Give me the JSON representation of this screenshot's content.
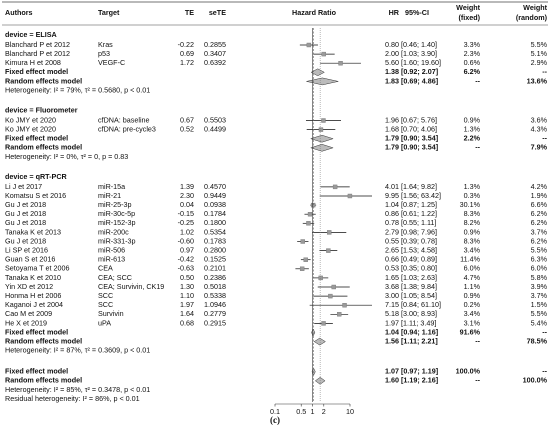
{
  "chart_data": {
    "type": "forest",
    "header": {
      "authors": "Authors",
      "target": "Target",
      "te": "TE",
      "sete": "seTE",
      "plot": "Hazard Ratio",
      "hr": "HR",
      "ci": "95%-CI",
      "weight_fixed": [
        "Weight",
        "(fixed)"
      ],
      "weight_random": [
        "Weight",
        "(random)"
      ]
    },
    "log_x": true,
    "xlim": [
      0.1,
      10
    ],
    "xticks": [
      0.1,
      0.5,
      1,
      2,
      10
    ],
    "square_color": "#9a9a9a",
    "diamond_color": "#bbbbbb",
    "groups": [
      {
        "label": "device = ELISA",
        "studies": [
          {
            "author": "Blanchard P et 2012",
            "target": "Kras",
            "te": "-0.22",
            "sete": "0.2855",
            "hr": 0.8,
            "lo": 0.46,
            "hi": 1.4,
            "hr_ci": "0.80 [0.46; 1.40]",
            "wf": "3.3%",
            "wr": "5.5%"
          },
          {
            "author": "Blanchard P et 2012",
            "target": "p53",
            "te": "0.69",
            "sete": "0.3407",
            "hr": 2.0,
            "lo": 1.03,
            "hi": 3.9,
            "hr_ci": "2.00 [1.03; 3.90]",
            "wf": "2.3%",
            "wr": "5.1%"
          },
          {
            "author": "Kimura H et 2008",
            "target": "VEGF-C",
            "te": "1.72",
            "sete": "0.6392",
            "hr": 5.6,
            "lo": 1.6,
            "hi": 19.6,
            "hr_ci": "5.60 [1.60; 19.60]",
            "wf": "0.6%",
            "wr": "2.9%"
          }
        ],
        "fixed": {
          "label": "Fixed effect model",
          "hr": 1.38,
          "lo": 0.92,
          "hi": 2.07,
          "hr_ci": "1.38 [0.92; 2.07]",
          "wf": "6.2%",
          "wr": "--"
        },
        "random": {
          "label": "Random effects model",
          "hr": 1.83,
          "lo": 0.69,
          "hi": 4.86,
          "hr_ci": "1.83 [0.69; 4.86]",
          "wf": "--",
          "wr": "13.6%"
        },
        "heterogeneity": "Heterogeneity: I² = 79%, τ² = 0.5680, p < 0.01"
      },
      {
        "label": "device = Fluorometer",
        "studies": [
          {
            "author": "Ko JMY et 2020",
            "target": "cfDNA: baseline",
            "te": "0.67",
            "sete": "0.5503",
            "hr": 1.96,
            "lo": 0.67,
            "hi": 5.76,
            "hr_ci": "1.96 [0.67; 5.76]",
            "wf": "0.9%",
            "wr": "3.6%"
          },
          {
            "author": "Ko JMY et 2020",
            "target": "cfDNA: pre-cycle3",
            "te": "0.52",
            "sete": "0.4499",
            "hr": 1.68,
            "lo": 0.7,
            "hi": 4.06,
            "hr_ci": "1.68 [0.70; 4.06]",
            "wf": "1.3%",
            "wr": "4.3%"
          }
        ],
        "fixed": {
          "label": "Fixed effect model",
          "hr": 1.79,
          "lo": 0.9,
          "hi": 3.54,
          "hr_ci": "1.79 [0.90; 3.54]",
          "wf": "2.2%",
          "wr": "--"
        },
        "random": {
          "label": "Random effects model",
          "hr": 1.79,
          "lo": 0.9,
          "hi": 3.54,
          "hr_ci": "1.79 [0.90; 3.54]",
          "wf": "--",
          "wr": "7.9%"
        },
        "heterogeneity": "Heterogeneity: I² = 0%, τ² = 0, p = 0.83"
      },
      {
        "label": "device = qRT-PCR",
        "studies": [
          {
            "author": "Li J et 2017",
            "target": "miR-15a",
            "te": "1.39",
            "sete": "0.4570",
            "hr": 4.01,
            "lo": 1.64,
            "hi": 9.82,
            "hr_ci": "4.01 [1.64; 9.82]",
            "wf": "1.3%",
            "wr": "4.2%"
          },
          {
            "author": "Komatsu S et 2016",
            "target": "miR-21",
            "te": "2.30",
            "sete": "0.9449",
            "hr": 9.95,
            "lo": 1.56,
            "hi": 63.42,
            "hr_ci": "9.95 [1.56; 63.42]",
            "wf": "0.3%",
            "wr": "1.9%"
          },
          {
            "author": "Gu J et 2018",
            "target": "miR-25-3p",
            "te": "0.04",
            "sete": "0.0938",
            "hr": 1.04,
            "lo": 0.87,
            "hi": 1.25,
            "hr_ci": "1.04 [0.87; 1.25]",
            "wf": "30.1%",
            "wr": "6.6%"
          },
          {
            "author": "Gu J et 2018",
            "target": "miR-30c-5p",
            "te": "-0.15",
            "sete": "0.1784",
            "hr": 0.86,
            "lo": 0.61,
            "hi": 1.22,
            "hr_ci": "0.86 [0.61; 1.22]",
            "wf": "8.3%",
            "wr": "6.2%"
          },
          {
            "author": "Gu J et 2018",
            "target": "miR-152-3p",
            "te": "-0.25",
            "sete": "0.1800",
            "hr": 0.78,
            "lo": 0.55,
            "hi": 1.11,
            "hr_ci": "0.78 [0.55; 1.11]",
            "wf": "8.2%",
            "wr": "6.2%"
          },
          {
            "author": "Tanaka K et 2013",
            "target": "miR-200c",
            "te": "1.02",
            "sete": "0.5354",
            "hr": 2.79,
            "lo": 0.98,
            "hi": 7.96,
            "hr_ci": "2.79 [0.98; 7.96]",
            "wf": "0.9%",
            "wr": "3.7%"
          },
          {
            "author": "Gu J et 2018",
            "target": "miR-331-3p",
            "te": "-0.60",
            "sete": "0.1783",
            "hr": 0.55,
            "lo": 0.39,
            "hi": 0.78,
            "hr_ci": "0.55 [0.39; 0.78]",
            "wf": "8.3%",
            "wr": "6.2%"
          },
          {
            "author": "Li SP et 2016",
            "target": "miR-506",
            "te": "0.97",
            "sete": "0.2800",
            "hr": 2.65,
            "lo": 1.53,
            "hi": 4.58,
            "hr_ci": "2.65 [1.53; 4.58]",
            "wf": "3.4%",
            "wr": "5.5%"
          },
          {
            "author": "Guan S et 2016",
            "target": "miR-613",
            "te": "-0.42",
            "sete": "0.1525",
            "hr": 0.66,
            "lo": 0.49,
            "hi": 0.89,
            "hr_ci": "0.66 [0.49; 0.89]",
            "wf": "11.4%",
            "wr": "6.3%"
          },
          {
            "author": "Setoyama T et 2006",
            "target": "CEA",
            "te": "-0.63",
            "sete": "0.2101",
            "hr": 0.53,
            "lo": 0.35,
            "hi": 0.8,
            "hr_ci": "0.53 [0.35; 0.80]",
            "wf": "6.0%",
            "wr": "6.0%"
          },
          {
            "author": "Tanaka K et 2010",
            "target": "CEA; SCC",
            "te": "0.50",
            "sete": "0.2386",
            "hr": 1.65,
            "lo": 1.03,
            "hi": 2.63,
            "hr_ci": "1.65 [1.03; 2.63]",
            "wf": "4.7%",
            "wr": "5.8%"
          },
          {
            "author": "Yin XD et 2012",
            "target": "CEA; Survivin, CK19",
            "te": "1.30",
            "sete": "0.5018",
            "hr": 3.68,
            "lo": 1.38,
            "hi": 9.84,
            "hr_ci": "3.68 [1.38; 9.84]",
            "wf": "1.1%",
            "wr": "3.9%"
          },
          {
            "author": "Honma H et 2006",
            "target": "SCC",
            "te": "1.10",
            "sete": "0.5338",
            "hr": 3.0,
            "lo": 1.05,
            "hi": 8.54,
            "hr_ci": "3.00 [1.05; 8.54]",
            "wf": "0.9%",
            "wr": "3.7%"
          },
          {
            "author": "Kaganoi J et 2004",
            "target": "SCC",
            "te": "1.97",
            "sete": "1.0946",
            "hr": 7.15,
            "lo": 0.84,
            "hi": 61.1,
            "hr_ci": "7.15 [0.84; 61.10]",
            "wf": "0.2%",
            "wr": "1.5%"
          },
          {
            "author": "Cao M et 2009",
            "target": "Survivin",
            "te": "1.64",
            "sete": "0.2779",
            "hr": 5.18,
            "lo": 3.0,
            "hi": 8.93,
            "hr_ci": "5.18 [3.00; 8.93]",
            "wf": "3.4%",
            "wr": "5.5%"
          },
          {
            "author": "He X et 2019",
            "target": "uPA",
            "te": "0.68",
            "sete": "0.2915",
            "hr": 1.97,
            "lo": 1.11,
            "hi": 3.49,
            "hr_ci": "1.97 [1.11; 3.49]",
            "wf": "3.1%",
            "wr": "5.4%"
          }
        ],
        "fixed": {
          "label": "Fixed effect model",
          "hr": 1.04,
          "lo": 0.94,
          "hi": 1.16,
          "hr_ci": "1.04 [0.94; 1.16]",
          "wf": "91.6%",
          "wr": "--"
        },
        "random": {
          "label": "Random effects model",
          "hr": 1.56,
          "lo": 1.11,
          "hi": 2.21,
          "hr_ci": "1.56 [1.11; 2.21]",
          "wf": "--",
          "wr": "78.5%"
        },
        "heterogeneity": "Heterogeneity: I² = 87%, τ² = 0.3609, p < 0.01"
      }
    ],
    "overall": {
      "fixed": {
        "label": "Fixed effect model",
        "hr": 1.07,
        "lo": 0.97,
        "hi": 1.19,
        "hr_ci": "1.07 [0.97; 1.19]",
        "wf": "100.0%",
        "wr": "--"
      },
      "random": {
        "label": "Random effects model",
        "hr": 1.6,
        "lo": 1.19,
        "hi": 2.16,
        "hr_ci": "1.60 [1.19; 2.16]",
        "wf": "--",
        "wr": "100.0%"
      },
      "heterogeneity": "Heterogeneity: I² = 85%, τ² = 0.3478, p < 0.01",
      "residual": "Residual heterogeneity: I² = 86%, p < 0.01"
    },
    "caption": "(c)"
  }
}
